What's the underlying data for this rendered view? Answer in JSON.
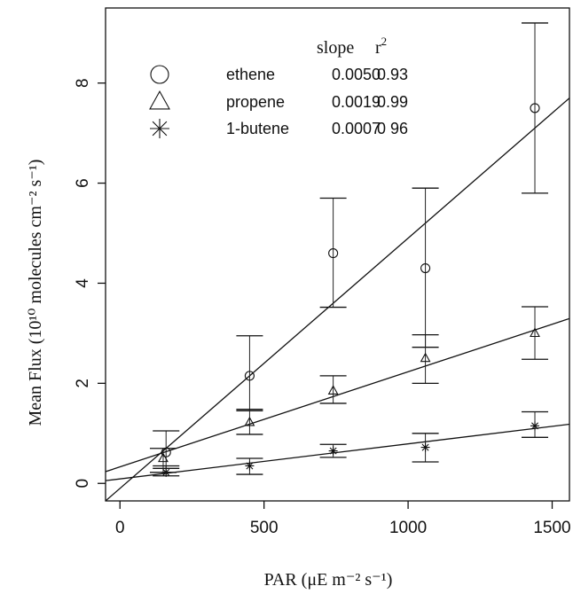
{
  "chart_data": {
    "type": "scatter",
    "title": "",
    "xlabel": "PAR (μE m⁻² s⁻¹)",
    "ylabel": "Mean Flux (10¹⁰ molecules cm⁻² s⁻¹)",
    "xlim": [
      -50,
      1560
    ],
    "ylim": [
      -0.35,
      9.5
    ],
    "xticks": [
      0,
      500,
      1000,
      1500
    ],
    "yticks": [
      0,
      2,
      4,
      6,
      8
    ],
    "grid": false,
    "legend_position": "top-left",
    "legend_header": {
      "slope": "slope",
      "r2": "r"
    },
    "series": [
      {
        "name": "ethene",
        "marker": "circle",
        "slope_label": "0.0050",
        "r2_label": "0.93",
        "x": [
          160,
          450,
          740,
          1060,
          1440
        ],
        "y": [
          0.62,
          2.15,
          4.6,
          4.3,
          7.5
        ],
        "err_low": [
          0.3,
          1.45,
          3.52,
          2.72,
          5.8
        ],
        "err_high": [
          1.05,
          2.95,
          5.7,
          5.9,
          9.2
        ],
        "fit": {
          "slope": 0.005,
          "intercept": -0.1
        }
      },
      {
        "name": "propene",
        "marker": "triangle",
        "slope_label": "0.0019",
        "r2_label": "0.99",
        "x": [
          150,
          450,
          740,
          1060,
          1440
        ],
        "y": [
          0.5,
          1.22,
          1.85,
          2.5,
          3.0
        ],
        "err_low": [
          0.22,
          0.98,
          1.6,
          2.0,
          2.48
        ],
        "err_high": [
          0.7,
          1.48,
          2.15,
          2.97,
          3.53
        ],
        "fit": {
          "slope": 0.0019,
          "intercept": 0.33
        }
      },
      {
        "name": "1-butene",
        "marker": "asterisk",
        "slope_label": "0.0007",
        "r2_label": "0 96",
        "x": [
          160,
          450,
          740,
          1060,
          1440
        ],
        "y": [
          0.22,
          0.35,
          0.65,
          0.72,
          1.15
        ],
        "err_low": [
          0.15,
          0.18,
          0.52,
          0.43,
          0.92
        ],
        "err_high": [
          0.35,
          0.5,
          0.78,
          1.0,
          1.43
        ],
        "fit": {
          "slope": 0.0007,
          "intercept": 0.09
        }
      }
    ]
  }
}
